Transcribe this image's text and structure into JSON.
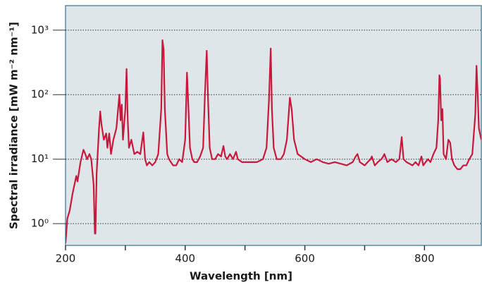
{
  "chart_data": {
    "type": "line",
    "x_label": "Wavelength [nm]",
    "y_label": "Spectral irradiance [mW m⁻² nm⁻¹]",
    "log_y": true,
    "grid": true,
    "color": "#c8193c",
    "xlim": [
      200,
      895
    ],
    "ylim": [
      0.46,
      2400
    ],
    "xticks": [
      200,
      400,
      600,
      800
    ],
    "xminorticks": [
      300,
      500,
      700
    ],
    "yticks": [
      {
        "value": 1,
        "label": "10⁰"
      },
      {
        "value": 10,
        "label": "10¹"
      },
      {
        "value": 100,
        "label": "10²"
      },
      {
        "value": 1000,
        "label": "10³"
      }
    ],
    "x": [
      200,
      203,
      207,
      212,
      218,
      220,
      225,
      230,
      233,
      236,
      240,
      243,
      247,
      249,
      250,
      252,
      256,
      258,
      260,
      264,
      268,
      270,
      273,
      276,
      280,
      285,
      290,
      292,
      294,
      296,
      300,
      302,
      304,
      306,
      310,
      315,
      320,
      325,
      330,
      333,
      336,
      340,
      345,
      350,
      355,
      360,
      362,
      364,
      366,
      370,
      373,
      376,
      380,
      385,
      390,
      395,
      400,
      403,
      405,
      408,
      412,
      415,
      420,
      425,
      430,
      433,
      436,
      438,
      441,
      445,
      450,
      455,
      460,
      464,
      467,
      470,
      475,
      480,
      485,
      488,
      495,
      510,
      520,
      530,
      536,
      540,
      543,
      545,
      548,
      553,
      560,
      565,
      570,
      575,
      578,
      582,
      588,
      600,
      610,
      620,
      630,
      640,
      650,
      660,
      670,
      680,
      685,
      688,
      692,
      700,
      705,
      710,
      712,
      717,
      722,
      728,
      731,
      733,
      738,
      745,
      752,
      758,
      762,
      765,
      770,
      780,
      785,
      790,
      795,
      798,
      802,
      806,
      810,
      815,
      820,
      823,
      825,
      826,
      828,
      830,
      832,
      836,
      840,
      843,
      846,
      850,
      855,
      860,
      865,
      870,
      875,
      880,
      885,
      887,
      889,
      891,
      895
    ],
    "values": [
      0.5,
      1.2,
      1.6,
      3,
      5.5,
      4.5,
      9,
      14,
      12,
      10,
      12,
      10,
      4,
      0.7,
      0.7,
      6,
      30,
      55,
      35,
      20,
      25,
      15,
      25,
      12,
      20,
      30,
      100,
      40,
      70,
      20,
      60,
      250,
      40,
      15,
      20,
      12,
      13,
      12,
      26,
      10,
      8,
      9,
      8,
      9,
      12,
      60,
      700,
      500,
      60,
      12,
      10,
      9,
      8,
      8,
      10,
      9,
      20,
      220,
      80,
      15,
      10,
      9,
      9,
      11,
      15,
      100,
      480,
      100,
      15,
      10,
      10,
      12,
      11,
      16,
      11,
      10,
      12,
      10,
      13,
      10,
      9,
      9,
      9,
      10,
      15,
      80,
      520,
      60,
      15,
      10,
      10,
      12,
      20,
      90,
      60,
      20,
      12,
      10,
      9,
      10,
      9,
      8.5,
      9,
      8.5,
      8,
      9,
      11,
      12,
      9,
      8,
      9,
      10,
      11,
      8,
      9,
      10,
      11,
      12,
      9,
      10,
      9,
      10,
      22,
      10,
      9,
      8,
      9,
      8,
      11,
      8,
      9,
      10,
      9,
      12,
      15,
      40,
      200,
      180,
      40,
      60,
      12,
      10,
      20,
      18,
      10,
      8,
      7,
      7,
      8,
      8,
      10,
      12,
      50,
      280,
      100,
      30,
      20
    ]
  }
}
